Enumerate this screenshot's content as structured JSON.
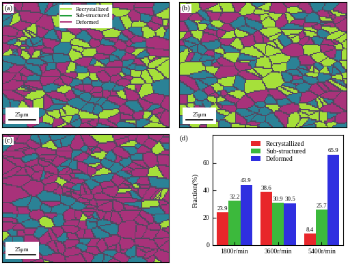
{
  "panel_labels": [
    "(a)",
    "(b)",
    "(c)",
    "(d)"
  ],
  "maps": {
    "scale_bar": "25μm",
    "legend": [
      {
        "name": "Recrystallized",
        "color": "#a8e63c"
      },
      {
        "name": "Sub-structured",
        "color": "#1f9e3a"
      },
      {
        "name": "Deformed",
        "color": "#b03a7c"
      }
    ],
    "grain_colors": [
      "#a6e03a",
      "#2b8296",
      "#a8327a"
    ]
  },
  "chart_data": {
    "type": "bar",
    "ylabel": "Fraction(%)",
    "categories": [
      "1800r/min",
      "3600r/min",
      "5400r/min"
    ],
    "series": [
      {
        "name": "Recrystallized",
        "color": "#e8262a",
        "values": [
          23.9,
          38.6,
          8.4
        ]
      },
      {
        "name": "Sub-structured",
        "color": "#3cb93c",
        "values": [
          32.2,
          30.9,
          25.7
        ]
      },
      {
        "name": "Deformed",
        "color": "#2f2fe0",
        "values": [
          43.9,
          30.5,
          65.9
        ]
      }
    ],
    "ylim": [
      0,
      80
    ],
    "yticks": [
      0,
      20,
      40,
      60
    ],
    "legend": "upper center",
    "data_labels": true
  }
}
